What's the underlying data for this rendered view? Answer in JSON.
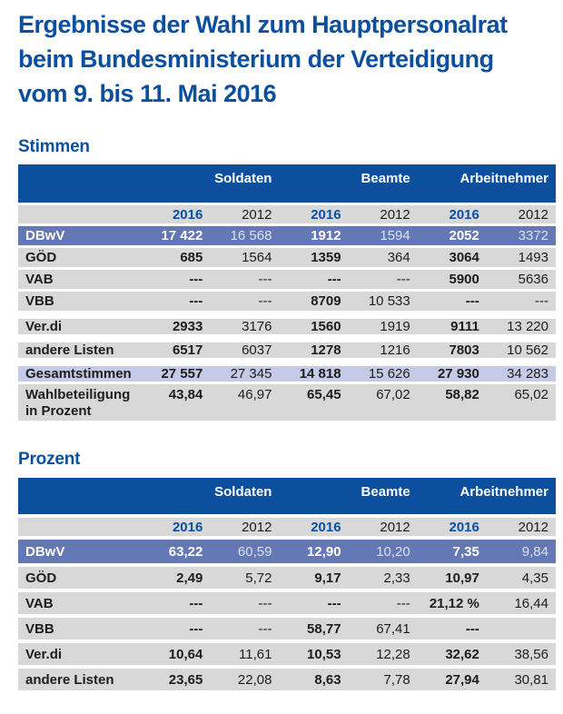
{
  "title_lines": [
    "Ergebnisse der Wahl zum Hauptpersonalrat",
    "beim Bundesministerium der Verteidigung",
    "vom 9. bis 11. Mai 2016"
  ],
  "colors": {
    "brand_blue": "#0b4f9e",
    "dbwv_row": "#6478b5",
    "total_row": "#c5cae6",
    "row_gray": "#d8d8d8",
    "text_dark": "#1d1d1b"
  },
  "tables": [
    {
      "heading": "Stimmen",
      "groups": [
        "Soldaten",
        "Beamte",
        "Arbeitnehmer"
      ],
      "years": [
        "2016",
        "2012",
        "2016",
        "2012",
        "2016",
        "2012"
      ],
      "rows": [
        {
          "label": "DBwV",
          "variant": "dbwv-highlight",
          "values": [
            "17 422",
            "16 568",
            "1912",
            "1594",
            "2052",
            "3372"
          ]
        },
        {
          "label": "GÖD",
          "values": [
            "685",
            "1564",
            "1359",
            "364",
            "3064",
            "1493"
          ]
        },
        {
          "label": "VAB",
          "values": [
            "---",
            "---",
            "---",
            "---",
            "5900",
            "5636"
          ]
        },
        {
          "label": "VBB",
          "values": [
            "---",
            "---",
            "8709",
            "10 533",
            "---",
            "---"
          ]
        },
        {
          "label": "Ver.di",
          "gap_before": true,
          "values": [
            "2933",
            "3176",
            "1560",
            "1919",
            "9111",
            "13 220"
          ]
        },
        {
          "label": "andere Listen",
          "gap_before": true,
          "values": [
            "6517",
            "6037",
            "1278",
            "1216",
            "7803",
            "10 562"
          ]
        },
        {
          "label": "Gesamtstimmen",
          "variant": "total-highlight",
          "gap_before": true,
          "values": [
            "27 557",
            "27 345",
            "14 818",
            "15 626",
            "27 930",
            "34 283"
          ]
        },
        {
          "label": "Wahlbeteiligung in Prozent",
          "label_lines": [
            "Wahlbeteiligung",
            "in Prozent"
          ],
          "variant": "two-line-label",
          "values": [
            "43,84",
            "46,97",
            "65,45",
            "67,02",
            "58,82",
            "65,02"
          ]
        }
      ]
    },
    {
      "heading": "Prozent",
      "groups": [
        "Soldaten",
        "Beamte",
        "Arbeitnehmer"
      ],
      "years": [
        "2016",
        "2012",
        "2016",
        "2012",
        "2016",
        "2012"
      ],
      "rows": [
        {
          "label": "DBwV",
          "variant": "dbwv-highlight",
          "values": [
            "63,22",
            "60,59",
            "12,90",
            "10,20",
            "7,35",
            "9,84"
          ]
        },
        {
          "label": "GÖD",
          "values": [
            "2,49",
            "5,72",
            "9,17",
            "2,33",
            "10,97",
            "4,35"
          ]
        },
        {
          "label": "VAB",
          "values": [
            "---",
            "---",
            "---",
            "---",
            "21,12 %",
            "16,44"
          ]
        },
        {
          "label": "VBB",
          "values": [
            "---",
            "---",
            "58,77",
            "67,41",
            "---",
            ""
          ]
        },
        {
          "label": "Ver.di",
          "values": [
            "10,64",
            "11,61",
            "10,53",
            "12,28",
            "32,62",
            "38,56"
          ]
        },
        {
          "label": "andere Listen",
          "values": [
            "23,65",
            "22,08",
            "8,63",
            "7,78",
            "27,94",
            "30,81"
          ]
        }
      ]
    }
  ]
}
